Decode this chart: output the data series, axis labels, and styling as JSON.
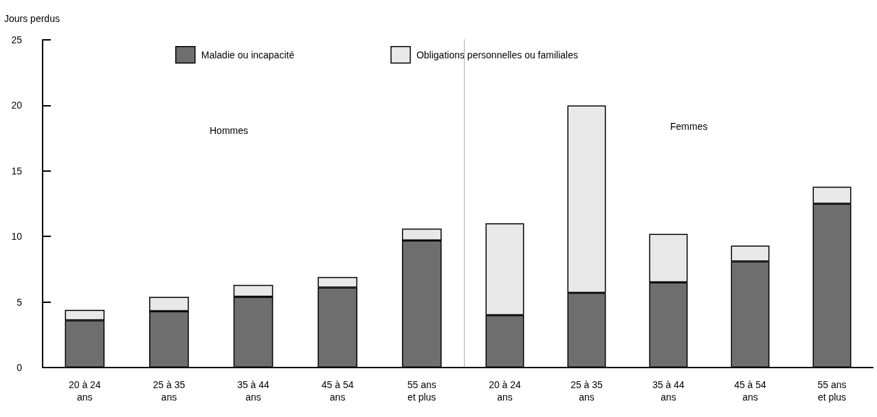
{
  "chart_data": [
    {
      "type": "bar",
      "ylabel": "Jours perdus",
      "annotations": [
        "Hommes"
      ],
      "categories": [
        "20 à 24\nans",
        "25 à 35\nans",
        "35 à 44\nans",
        "45 à 54\nans",
        "55 ans\net plus"
      ],
      "series": [
        {
          "name": "Maladie ou incapacité",
          "color": "#6e6e6e",
          "values": [
            3.6,
            4.3,
            5.4,
            6.1,
            9.7
          ]
        },
        {
          "name": "Obligations personnelles ou familiales",
          "color": "#e8e8e8",
          "values": [
            0.8,
            1.1,
            0.9,
            0.8,
            0.9
          ]
        }
      ],
      "stacked": true,
      "ylim": [
        0,
        25
      ],
      "yticks": [
        0,
        5,
        10,
        15,
        20,
        25
      ],
      "grid": false,
      "legend": "top"
    },
    {
      "type": "bar",
      "annotations": [
        "Femmes"
      ],
      "categories": [
        "20 à 24\nans",
        "25 à 35\nans",
        "35 à 44\nans",
        "45 à 54\nans",
        "55 ans\net plus"
      ],
      "series": [
        {
          "color": "#6e6e6e",
          "values": [
            4.0,
            5.7,
            6.5,
            8.1,
            12.5
          ]
        },
        {
          "color": "#e8e8e8",
          "values": [
            7.0,
            14.3,
            3.7,
            1.2,
            1.3
          ]
        }
      ],
      "stacked": true,
      "ylim": [
        0,
        25
      ],
      "yticks": [
        0,
        5,
        10,
        15,
        20,
        25
      ],
      "grid": false,
      "tick_labels": "x"
    }
  ]
}
